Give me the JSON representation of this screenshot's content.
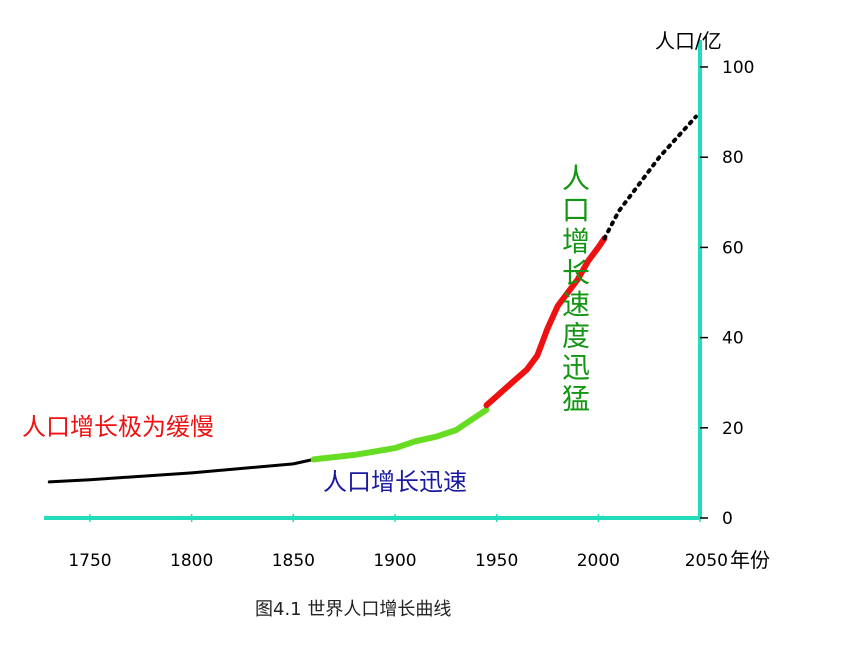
{
  "chart_data": {
    "type": "line",
    "caption": "图4.1   世界人口增长曲线",
    "xlabel": "年份",
    "ylabel": "人口/亿",
    "xlim": [
      1730,
      2050
    ],
    "ylim": [
      0,
      100
    ],
    "x_ticks": [
      "1750",
      "1800",
      "1850",
      "1900",
      "1950",
      "2000",
      "2050"
    ],
    "y_ticks": [
      "0",
      "20",
      "40",
      "60",
      "80",
      "100"
    ],
    "grid": false,
    "series": [
      {
        "color": "#000000",
        "x": [
          1730,
          1750,
          1800,
          1850,
          1860
        ],
        "y": [
          8,
          8.5,
          10,
          12,
          13
        ]
      },
      {
        "color": "#66dd22",
        "x": [
          1860,
          1880,
          1900,
          1910,
          1920,
          1930,
          1945
        ],
        "y": [
          13,
          14,
          15.5,
          17,
          18,
          19.5,
          24
        ]
      },
      {
        "color": "#ee1111",
        "x": [
          1945,
          1950,
          1960,
          1965,
          1970,
          1975,
          1980,
          1985,
          1990,
          1995,
          2000,
          2003
        ],
        "y": [
          25,
          27,
          31,
          33,
          36,
          42,
          47,
          50,
          53,
          57,
          60,
          62
        ]
      },
      {
        "color": "#000000",
        "dashed": true,
        "x": [
          2003,
          2010,
          2020,
          2030,
          2040,
          2048
        ],
        "y": [
          62,
          68,
          74,
          80,
          85,
          89
        ]
      }
    ],
    "annotations": [
      {
        "text": "人口增长极为缓慢",
        "color": "#ee1111",
        "orientation": "horizontal"
      },
      {
        "text": "人口增长迅速",
        "color": "#1a1aa0",
        "orientation": "horizontal"
      },
      {
        "text": "人口增长速度迅猛",
        "color": "#149614",
        "orientation": "vertical"
      }
    ],
    "axis_color": "#22ddbb"
  }
}
